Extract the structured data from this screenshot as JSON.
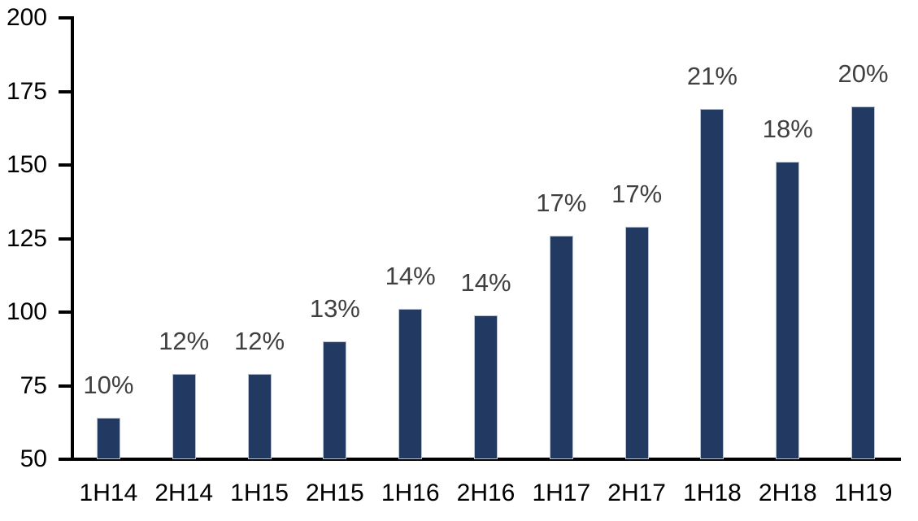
{
  "chart_data": {
    "type": "bar",
    "categories": [
      "1H14",
      "2H14",
      "1H15",
      "2H15",
      "1H16",
      "2H16",
      "1H17",
      "2H17",
      "1H18",
      "2H18",
      "1H19"
    ],
    "values": [
      64,
      79,
      79,
      90,
      101,
      99,
      126,
      129,
      169,
      151,
      170
    ],
    "bar_labels": [
      "10%",
      "12%",
      "12%",
      "13%",
      "14%",
      "14%",
      "17%",
      "17%",
      "21%",
      "18%",
      "20%"
    ],
    "title": "",
    "xlabel": "",
    "ylabel": "",
    "ylim": [
      50,
      200
    ],
    "yticks": [
      200,
      175,
      150,
      125,
      100,
      75,
      50
    ],
    "grid": false,
    "legend": false,
    "bar_color": "#223961",
    "bar_border_color": "#b7c3d3",
    "bar_label_color": "#404040",
    "axis_color": "#000000",
    "tick_label_color": "#000000"
  }
}
